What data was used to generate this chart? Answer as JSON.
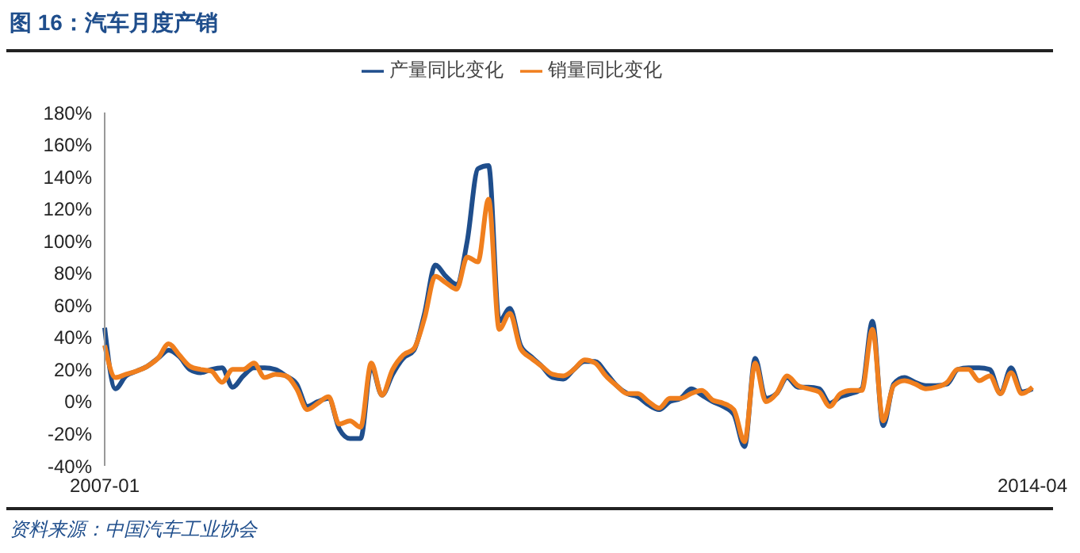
{
  "chart_data": {
    "type": "line",
    "title": "图 16：汽车月度产销",
    "annotations": [
      "资料来源：中国汽车工业协会"
    ],
    "categories": [
      "2007-01",
      null,
      null,
      null,
      null,
      null,
      null,
      null,
      null,
      null,
      null,
      null,
      null,
      null,
      null,
      null,
      null,
      null,
      null,
      null,
      null,
      null,
      null,
      null,
      null,
      null,
      null,
      null,
      null,
      null,
      null,
      null,
      null,
      null,
      null,
      null,
      null,
      null,
      null,
      null,
      null,
      null,
      null,
      null,
      null,
      null,
      null,
      null,
      null,
      null,
      null,
      null,
      null,
      null,
      null,
      null,
      null,
      null,
      null,
      null,
      null,
      null,
      null,
      null,
      null,
      null,
      null,
      null,
      null,
      null,
      null,
      null,
      null,
      null,
      null,
      null,
      null,
      null,
      null,
      null,
      null,
      null,
      null,
      null,
      null,
      null,
      null,
      "2014-04"
    ],
    "series": [
      {
        "name": "产量同比变化",
        "color": "#1f4e8c",
        "values": [
          46,
          8,
          16,
          19,
          22,
          27,
          32,
          28,
          20,
          18,
          20,
          21,
          9,
          16,
          21,
          21,
          20,
          16,
          11,
          -3,
          0,
          2,
          -17,
          -23,
          -23,
          22,
          4,
          17,
          27,
          32,
          55,
          85,
          78,
          73,
          100,
          145,
          147,
          50,
          58,
          35,
          28,
          22,
          15,
          14,
          20,
          25,
          25,
          18,
          10,
          5,
          3,
          -2,
          -5,
          0,
          2,
          8,
          4,
          0,
          -3,
          -8,
          -28,
          27,
          2,
          5,
          15,
          9,
          9,
          8,
          -1,
          3,
          5,
          8,
          50,
          -15,
          11,
          15,
          12,
          10,
          10,
          11,
          20,
          21,
          21,
          20,
          5,
          21,
          6,
          8
        ]
      },
      {
        "name": "销量同比变化",
        "color": "#f07f1e",
        "values": [
          35,
          15,
          17,
          19,
          22,
          27,
          36,
          29,
          22,
          20,
          19,
          12,
          20,
          20,
          24,
          15,
          17,
          16,
          8,
          -5,
          -1,
          3,
          -14,
          -12,
          -16,
          24,
          4,
          20,
          29,
          33,
          52,
          78,
          74,
          70,
          90,
          87,
          126,
          45,
          55,
          33,
          27,
          22,
          17,
          16,
          20,
          26,
          24,
          16,
          10,
          5,
          5,
          0,
          -4,
          2,
          2,
          5,
          7,
          1,
          -1,
          -5,
          -25,
          24,
          0,
          5,
          16,
          10,
          8,
          6,
          -3,
          5,
          7,
          7,
          45,
          -12,
          10,
          13,
          11,
          8,
          9,
          12,
          20,
          20,
          13,
          16,
          5,
          18,
          5,
          9
        ]
      }
    ],
    "ylim": [
      -40,
      180
    ],
    "yticks": [
      {
        "value": -40,
        "label": "-40%"
      },
      {
        "value": -20,
        "label": "-20%"
      },
      {
        "value": 0,
        "label": "0%"
      },
      {
        "value": 20,
        "label": "20%"
      },
      {
        "value": 40,
        "label": "40%"
      },
      {
        "value": 60,
        "label": "60%"
      },
      {
        "value": 80,
        "label": "80%"
      },
      {
        "value": 100,
        "label": "100%"
      },
      {
        "value": 120,
        "label": "120%"
      },
      {
        "value": 140,
        "label": "140%"
      },
      {
        "value": 160,
        "label": "160%"
      },
      {
        "value": 180,
        "label": "180%"
      }
    ],
    "legend": "top",
    "grid": false,
    "marker": "none",
    "line_style": "solid"
  }
}
